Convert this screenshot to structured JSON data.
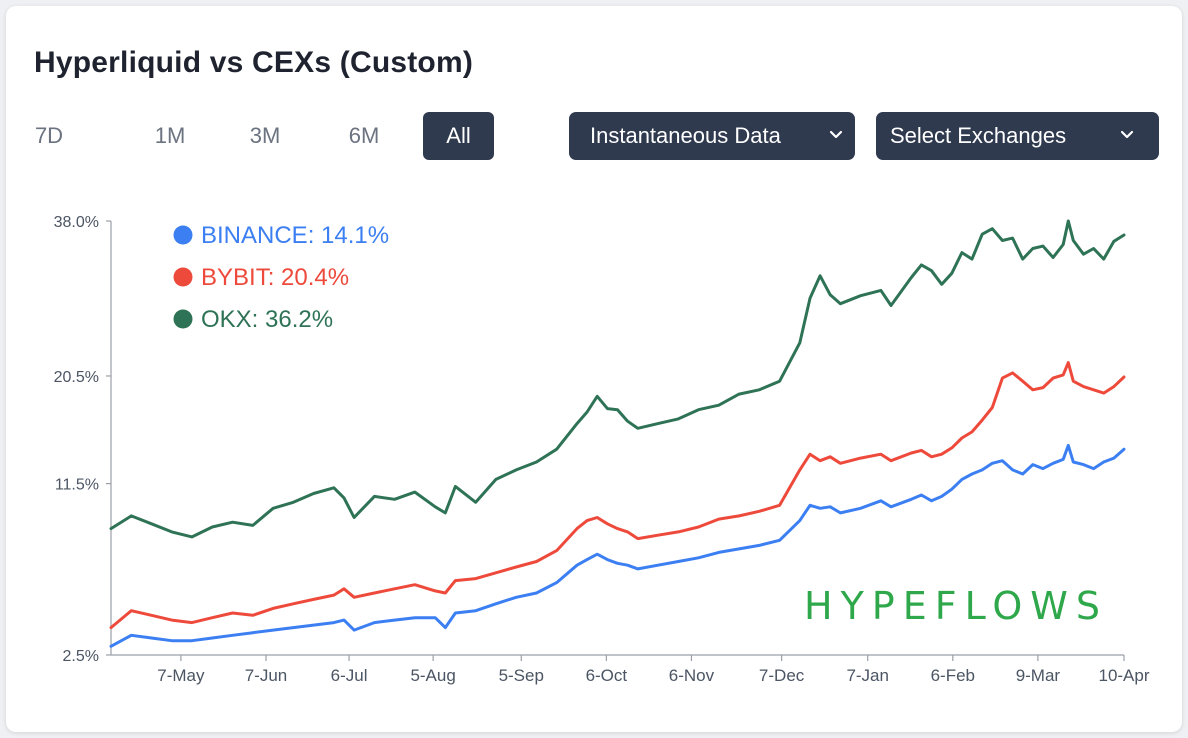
{
  "header": {
    "title": "Hyperliquid vs CEXs (Custom)"
  },
  "range_buttons": [
    "7D",
    "1M",
    "3M",
    "6M",
    "All"
  ],
  "active_range": "All",
  "dropdowns": {
    "data_mode": "Instantaneous Data",
    "exchanges": "Select Exchanges"
  },
  "watermark": "HYPEFLOWS",
  "colors": {
    "binance": "#3b7ff2",
    "bybit": "#ee4a3b",
    "okx": "#2f7356",
    "button_dark": "#2f3a4f",
    "axis": "#9aa0a6"
  },
  "icons": {
    "dropdown": "chevron-down-icon"
  },
  "chart_data": {
    "type": "line",
    "y_ticks": [
      "38.0%",
      "20.5%",
      "11.5%",
      "2.5%"
    ],
    "y_tick_values": [
      38.0,
      20.5,
      11.5,
      2.5
    ],
    "x_ticks": [
      "7-May",
      "7-Jun",
      "6-Jul",
      "5-Aug",
      "5-Sep",
      "6-Oct",
      "6-Nov",
      "7-Dec",
      "7-Jan",
      "6-Feb",
      "9-Mar",
      "10-Apr"
    ],
    "x_tick_positions": [
      0.069,
      0.153,
      0.235,
      0.318,
      0.405,
      0.489,
      0.573,
      0.662,
      0.747,
      0.831,
      0.915,
      1.0
    ],
    "legend": [
      {
        "name": "BINANCE",
        "label": "BINANCE: 14.1%",
        "value": 14.1,
        "color": "#3b7ff2"
      },
      {
        "name": "BYBIT",
        "label": "BYBIT: 20.4%",
        "value": 20.4,
        "color": "#ee4a3b"
      },
      {
        "name": "OKX",
        "label": "OKX: 36.2%",
        "value": 36.2,
        "color": "#2f7356"
      }
    ],
    "series": [
      {
        "name": "OKX",
        "color": "#2f7356",
        "points": [
          [
            0.0,
            8.5
          ],
          [
            0.02,
            9.3
          ],
          [
            0.04,
            8.8
          ],
          [
            0.06,
            8.3
          ],
          [
            0.08,
            8.0
          ],
          [
            0.1,
            8.6
          ],
          [
            0.12,
            8.9
          ],
          [
            0.14,
            8.7
          ],
          [
            0.16,
            9.8
          ],
          [
            0.18,
            10.2
          ],
          [
            0.2,
            10.8
          ],
          [
            0.22,
            11.2
          ],
          [
            0.23,
            10.5
          ],
          [
            0.24,
            9.2
          ],
          [
            0.26,
            10.6
          ],
          [
            0.28,
            10.4
          ],
          [
            0.3,
            10.9
          ],
          [
            0.32,
            9.9
          ],
          [
            0.33,
            9.5
          ],
          [
            0.34,
            11.3
          ],
          [
            0.36,
            10.2
          ],
          [
            0.38,
            11.8
          ],
          [
            0.4,
            12.5
          ],
          [
            0.42,
            13.1
          ],
          [
            0.44,
            14.1
          ],
          [
            0.46,
            16.2
          ],
          [
            0.47,
            17.2
          ],
          [
            0.48,
            18.6
          ],
          [
            0.49,
            17.5
          ],
          [
            0.5,
            17.4
          ],
          [
            0.51,
            16.4
          ],
          [
            0.52,
            15.8
          ],
          [
            0.54,
            16.2
          ],
          [
            0.56,
            16.6
          ],
          [
            0.58,
            17.4
          ],
          [
            0.6,
            17.8
          ],
          [
            0.62,
            18.8
          ],
          [
            0.64,
            19.2
          ],
          [
            0.66,
            20.0
          ],
          [
            0.68,
            23.8
          ],
          [
            0.69,
            28.6
          ],
          [
            0.7,
            31.2
          ],
          [
            0.71,
            29.0
          ],
          [
            0.72,
            28.0
          ],
          [
            0.74,
            28.9
          ],
          [
            0.76,
            29.5
          ],
          [
            0.77,
            27.8
          ],
          [
            0.79,
            31.0
          ],
          [
            0.8,
            32.5
          ],
          [
            0.81,
            31.8
          ],
          [
            0.82,
            30.2
          ],
          [
            0.83,
            31.5
          ],
          [
            0.84,
            34.0
          ],
          [
            0.85,
            33.2
          ],
          [
            0.86,
            36.3
          ],
          [
            0.87,
            37.0
          ],
          [
            0.88,
            35.5
          ],
          [
            0.89,
            35.8
          ],
          [
            0.9,
            33.2
          ],
          [
            0.91,
            34.5
          ],
          [
            0.92,
            34.8
          ],
          [
            0.93,
            33.4
          ],
          [
            0.94,
            35.0
          ],
          [
            0.945,
            38.0
          ],
          [
            0.95,
            35.5
          ],
          [
            0.96,
            33.8
          ],
          [
            0.97,
            34.5
          ],
          [
            0.98,
            33.2
          ],
          [
            0.99,
            35.4
          ],
          [
            1.0,
            36.2
          ]
        ]
      },
      {
        "name": "BYBIT",
        "color": "#ee4a3b",
        "points": [
          [
            0.0,
            3.5
          ],
          [
            0.02,
            4.2
          ],
          [
            0.04,
            4.0
          ],
          [
            0.06,
            3.8
          ],
          [
            0.08,
            3.7
          ],
          [
            0.1,
            3.9
          ],
          [
            0.12,
            4.1
          ],
          [
            0.14,
            4.0
          ],
          [
            0.16,
            4.3
          ],
          [
            0.18,
            4.5
          ],
          [
            0.2,
            4.7
          ],
          [
            0.22,
            4.9
          ],
          [
            0.23,
            5.2
          ],
          [
            0.24,
            4.8
          ],
          [
            0.26,
            5.0
          ],
          [
            0.28,
            5.2
          ],
          [
            0.3,
            5.4
          ],
          [
            0.32,
            5.1
          ],
          [
            0.33,
            5.0
          ],
          [
            0.34,
            5.6
          ],
          [
            0.36,
            5.7
          ],
          [
            0.38,
            6.0
          ],
          [
            0.4,
            6.3
          ],
          [
            0.42,
            6.6
          ],
          [
            0.44,
            7.2
          ],
          [
            0.46,
            8.5
          ],
          [
            0.47,
            9.0
          ],
          [
            0.48,
            9.2
          ],
          [
            0.49,
            8.8
          ],
          [
            0.5,
            8.5
          ],
          [
            0.51,
            8.3
          ],
          [
            0.52,
            7.9
          ],
          [
            0.54,
            8.1
          ],
          [
            0.56,
            8.3
          ],
          [
            0.58,
            8.6
          ],
          [
            0.6,
            9.1
          ],
          [
            0.62,
            9.3
          ],
          [
            0.64,
            9.6
          ],
          [
            0.66,
            10.0
          ],
          [
            0.68,
            12.5
          ],
          [
            0.69,
            13.7
          ],
          [
            0.7,
            13.2
          ],
          [
            0.71,
            13.5
          ],
          [
            0.72,
            13.0
          ],
          [
            0.74,
            13.4
          ],
          [
            0.76,
            13.7
          ],
          [
            0.77,
            13.2
          ],
          [
            0.79,
            13.8
          ],
          [
            0.8,
            14.0
          ],
          [
            0.81,
            13.5
          ],
          [
            0.82,
            13.7
          ],
          [
            0.83,
            14.2
          ],
          [
            0.84,
            15.0
          ],
          [
            0.85,
            15.5
          ],
          [
            0.86,
            16.5
          ],
          [
            0.87,
            17.6
          ],
          [
            0.88,
            20.3
          ],
          [
            0.89,
            20.8
          ],
          [
            0.9,
            20.0
          ],
          [
            0.91,
            19.2
          ],
          [
            0.92,
            19.4
          ],
          [
            0.93,
            20.3
          ],
          [
            0.94,
            20.6
          ],
          [
            0.945,
            21.8
          ],
          [
            0.95,
            20.0
          ],
          [
            0.96,
            19.5
          ],
          [
            0.97,
            19.2
          ],
          [
            0.98,
            18.9
          ],
          [
            0.99,
            19.5
          ],
          [
            1.0,
            20.4
          ]
        ]
      },
      {
        "name": "BINANCE",
        "color": "#3b7ff2",
        "points": [
          [
            0.0,
            2.8
          ],
          [
            0.02,
            3.2
          ],
          [
            0.04,
            3.1
          ],
          [
            0.06,
            3.0
          ],
          [
            0.08,
            3.0
          ],
          [
            0.1,
            3.1
          ],
          [
            0.12,
            3.2
          ],
          [
            0.14,
            3.3
          ],
          [
            0.16,
            3.4
          ],
          [
            0.18,
            3.5
          ],
          [
            0.2,
            3.6
          ],
          [
            0.22,
            3.7
          ],
          [
            0.23,
            3.8
          ],
          [
            0.24,
            3.4
          ],
          [
            0.26,
            3.7
          ],
          [
            0.28,
            3.8
          ],
          [
            0.3,
            3.9
          ],
          [
            0.32,
            3.9
          ],
          [
            0.33,
            3.5
          ],
          [
            0.34,
            4.1
          ],
          [
            0.36,
            4.2
          ],
          [
            0.38,
            4.5
          ],
          [
            0.4,
            4.8
          ],
          [
            0.42,
            5.0
          ],
          [
            0.44,
            5.5
          ],
          [
            0.46,
            6.4
          ],
          [
            0.47,
            6.7
          ],
          [
            0.48,
            7.0
          ],
          [
            0.49,
            6.7
          ],
          [
            0.5,
            6.5
          ],
          [
            0.51,
            6.4
          ],
          [
            0.52,
            6.2
          ],
          [
            0.54,
            6.4
          ],
          [
            0.56,
            6.6
          ],
          [
            0.58,
            6.8
          ],
          [
            0.6,
            7.1
          ],
          [
            0.62,
            7.3
          ],
          [
            0.64,
            7.5
          ],
          [
            0.66,
            7.8
          ],
          [
            0.68,
            9.0
          ],
          [
            0.69,
            10.0
          ],
          [
            0.7,
            9.8
          ],
          [
            0.71,
            9.9
          ],
          [
            0.72,
            9.5
          ],
          [
            0.74,
            9.8
          ],
          [
            0.76,
            10.3
          ],
          [
            0.77,
            9.9
          ],
          [
            0.79,
            10.4
          ],
          [
            0.8,
            10.7
          ],
          [
            0.81,
            10.3
          ],
          [
            0.82,
            10.6
          ],
          [
            0.83,
            11.1
          ],
          [
            0.84,
            11.8
          ],
          [
            0.85,
            12.2
          ],
          [
            0.86,
            12.5
          ],
          [
            0.87,
            13.0
          ],
          [
            0.88,
            13.2
          ],
          [
            0.89,
            12.5
          ],
          [
            0.9,
            12.2
          ],
          [
            0.91,
            12.9
          ],
          [
            0.92,
            12.6
          ],
          [
            0.93,
            13.0
          ],
          [
            0.94,
            13.3
          ],
          [
            0.945,
            14.4
          ],
          [
            0.95,
            13.1
          ],
          [
            0.96,
            12.9
          ],
          [
            0.97,
            12.6
          ],
          [
            0.98,
            13.1
          ],
          [
            0.99,
            13.4
          ],
          [
            1.0,
            14.1
          ]
        ]
      }
    ],
    "y_scale": "sqrt",
    "ylim": [
      2.5,
      38.0
    ],
    "xlim": [
      0,
      1
    ],
    "legend_placement": "top-left",
    "grid": false
  }
}
